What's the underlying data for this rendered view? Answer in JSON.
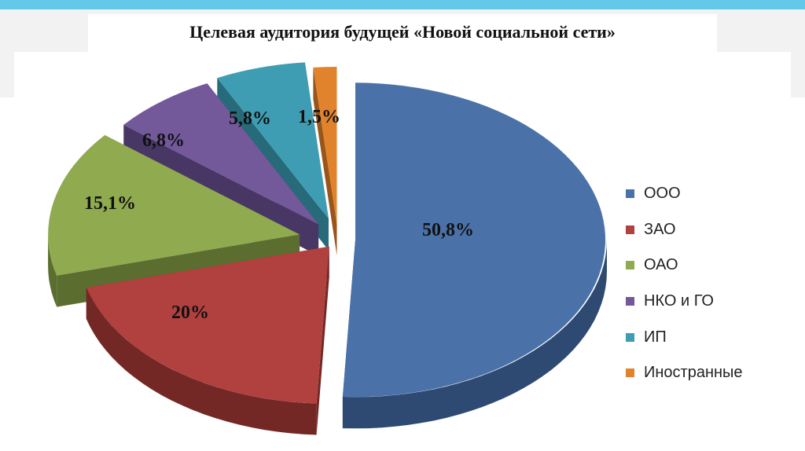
{
  "title": "Целевая аудитория будущей «Новой социальной сети»",
  "chart_data": {
    "type": "pie",
    "style": "3d-exploded",
    "legend_position": "right",
    "categories": [
      "ООО",
      "ЗАО",
      "ОАО",
      "НКО и ГО",
      "ИП",
      "Иностранные"
    ],
    "values": [
      50.8,
      20,
      15.1,
      6.8,
      5.8,
      1.5
    ],
    "data_labels": [
      "50,8%",
      "20%",
      "15,1%",
      "6,8%",
      "5,8%",
      "1,5%"
    ],
    "colors": [
      "#4a72a8",
      "#b0413e",
      "#8faa4f",
      "#73589a",
      "#3f9db3",
      "#e0832c"
    ],
    "side_colors": [
      "#2e4a72",
      "#742826",
      "#5b6e2f",
      "#483765",
      "#276a7a",
      "#9a5518"
    ]
  }
}
